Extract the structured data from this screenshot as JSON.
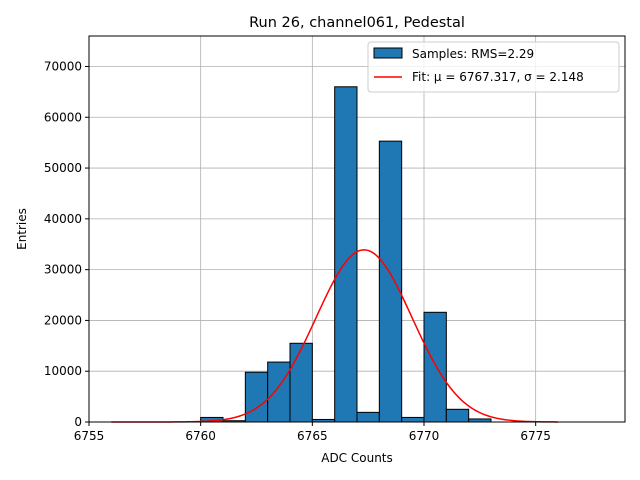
{
  "chart_data": {
    "type": "bar",
    "title": "Run 26, channel061, Pedestal",
    "xlabel": "ADC Counts",
    "ylabel": "Entries",
    "xlim": [
      6755,
      6779
    ],
    "ylim": [
      0,
      76000
    ],
    "xticks": [
      6755,
      6760,
      6765,
      6770,
      6775
    ],
    "yticks": [
      0,
      10000,
      20000,
      30000,
      40000,
      50000,
      60000,
      70000
    ],
    "grid": true,
    "legend_position": "top-right",
    "histogram": {
      "name": "Samples: RMS=2.29",
      "color": "#1f77b4",
      "bin_width": 1,
      "bins": [
        {
          "start": 6760,
          "count": 900
        },
        {
          "start": 6761,
          "count": 250
        },
        {
          "start": 6762,
          "count": 9800
        },
        {
          "start": 6763,
          "count": 11800
        },
        {
          "start": 6764,
          "count": 15500
        },
        {
          "start": 6765,
          "count": 500
        },
        {
          "start": 6766,
          "count": 66000
        },
        {
          "start": 6767,
          "count": 1900
        },
        {
          "start": 6768,
          "count": 55300
        },
        {
          "start": 6769,
          "count": 900
        },
        {
          "start": 6770,
          "count": 21600
        },
        {
          "start": 6771,
          "count": 2500
        },
        {
          "start": 6772,
          "count": 600
        }
      ]
    },
    "fit": {
      "name": "Fit: μ = 6767.317, σ = 2.148",
      "color": "#ff0000",
      "mu": 6767.317,
      "sigma": 2.148,
      "amplitude": 33900,
      "x_range": [
        6756,
        6776
      ]
    }
  }
}
